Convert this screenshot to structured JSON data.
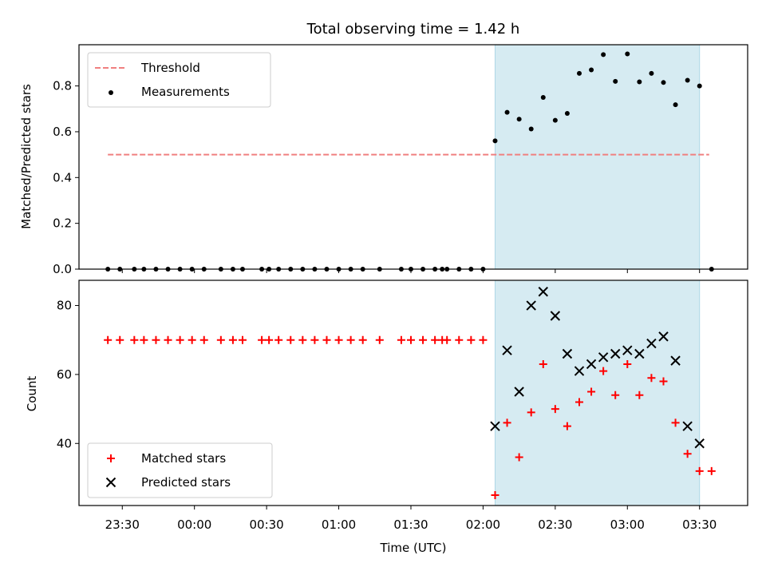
{
  "chart_data": [
    {
      "type": "scatter",
      "title": "Total observing time = 1.42 h",
      "ylabel": "Matched/Predicted stars",
      "ylim": [
        0,
        0.98
      ],
      "yticks": [
        0.0,
        0.2,
        0.4,
        0.6,
        0.8
      ],
      "ytick_labels": [
        "0.0",
        "0.2",
        "0.4",
        "0.6",
        "0.8"
      ],
      "xlim": [
        "23:12",
        "03:50"
      ],
      "highlight_span": [
        "02:05",
        "03:30"
      ],
      "highlight_color": "#add8e6",
      "legend_position": "upper left",
      "threshold": {
        "name": "Threshold",
        "value": 0.5,
        "x_range": [
          "23:24",
          "03:34"
        ],
        "color": "#f08080",
        "style": "dashed"
      },
      "series": [
        {
          "name": "Measurements",
          "marker": "dot",
          "color": "#000000",
          "points": [
            [
              "23:24",
              0
            ],
            [
              "23:29",
              0
            ],
            [
              "23:35",
              0
            ],
            [
              "23:39",
              0
            ],
            [
              "23:44",
              0
            ],
            [
              "23:49",
              0
            ],
            [
              "23:54",
              0
            ],
            [
              "23:59",
              0
            ],
            [
              "00:04",
              0
            ],
            [
              "00:11",
              0
            ],
            [
              "00:16",
              0
            ],
            [
              "00:20",
              0
            ],
            [
              "00:28",
              0
            ],
            [
              "00:31",
              0
            ],
            [
              "00:35",
              0
            ],
            [
              "00:40",
              0
            ],
            [
              "00:45",
              0
            ],
            [
              "00:50",
              0
            ],
            [
              "00:55",
              0
            ],
            [
              "01:00",
              0
            ],
            [
              "01:05",
              0
            ],
            [
              "01:10",
              0
            ],
            [
              "01:17",
              0
            ],
            [
              "01:26",
              0
            ],
            [
              "01:30",
              0
            ],
            [
              "01:35",
              0
            ],
            [
              "01:40",
              0
            ],
            [
              "01:43",
              0
            ],
            [
              "01:45",
              0
            ],
            [
              "01:50",
              0
            ],
            [
              "01:55",
              0
            ],
            [
              "02:00",
              0
            ],
            [
              "02:05",
              0.56
            ],
            [
              "02:10",
              0.685
            ],
            [
              "02:15",
              0.655
            ],
            [
              "02:20",
              0.612
            ],
            [
              "02:25",
              0.75
            ],
            [
              "02:30",
              0.65
            ],
            [
              "02:35",
              0.68
            ],
            [
              "02:40",
              0.855
            ],
            [
              "02:45",
              0.87
            ],
            [
              "02:50",
              0.937
            ],
            [
              "02:55",
              0.82
            ],
            [
              "03:00",
              0.94
            ],
            [
              "03:05",
              0.818
            ],
            [
              "03:10",
              0.855
            ],
            [
              "03:15",
              0.815
            ],
            [
              "03:20",
              0.718
            ],
            [
              "03:25",
              0.825
            ],
            [
              "03:30",
              0.8
            ],
            [
              "03:35",
              0
            ]
          ]
        }
      ]
    },
    {
      "type": "scatter",
      "xlabel": "Time (UTC)",
      "ylabel": "Count",
      "ylim": [
        22,
        87.3
      ],
      "yticks": [
        40,
        60,
        80
      ],
      "ytick_labels": [
        "40",
        "60",
        "80"
      ],
      "xlim": [
        "23:12",
        "03:50"
      ],
      "xticks": [
        "23:30",
        "00:00",
        "00:30",
        "01:00",
        "01:30",
        "02:00",
        "02:30",
        "03:00",
        "03:30"
      ],
      "xtick_labels": [
        "23:30",
        "00:00",
        "00:30",
        "01:00",
        "01:30",
        "02:00",
        "02:30",
        "03:00",
        "03:30"
      ],
      "highlight_span": [
        "02:05",
        "03:30"
      ],
      "highlight_color": "#add8e6",
      "legend_position": "lower left",
      "series": [
        {
          "name": "Matched stars",
          "marker": "plus",
          "color": "#ff0000",
          "points": [
            [
              "23:24",
              70
            ],
            [
              "23:29",
              70
            ],
            [
              "23:35",
              70
            ],
            [
              "23:39",
              70
            ],
            [
              "23:44",
              70
            ],
            [
              "23:49",
              70
            ],
            [
              "23:54",
              70
            ],
            [
              "23:59",
              70
            ],
            [
              "00:04",
              70
            ],
            [
              "00:11",
              70
            ],
            [
              "00:16",
              70
            ],
            [
              "00:20",
              70
            ],
            [
              "00:28",
              70
            ],
            [
              "00:31",
              70
            ],
            [
              "00:35",
              70
            ],
            [
              "00:40",
              70
            ],
            [
              "00:45",
              70
            ],
            [
              "00:50",
              70
            ],
            [
              "00:55",
              70
            ],
            [
              "01:00",
              70
            ],
            [
              "01:05",
              70
            ],
            [
              "01:10",
              70
            ],
            [
              "01:17",
              70
            ],
            [
              "01:26",
              70
            ],
            [
              "01:30",
              70
            ],
            [
              "01:35",
              70
            ],
            [
              "01:40",
              70
            ],
            [
              "01:43",
              70
            ],
            [
              "01:45",
              70
            ],
            [
              "01:50",
              70
            ],
            [
              "01:55",
              70
            ],
            [
              "02:00",
              70
            ],
            [
              "02:05",
              25
            ],
            [
              "02:10",
              46
            ],
            [
              "02:15",
              36
            ],
            [
              "02:20",
              49
            ],
            [
              "02:25",
              63
            ],
            [
              "02:30",
              50
            ],
            [
              "02:35",
              45
            ],
            [
              "02:40",
              52
            ],
            [
              "02:45",
              55
            ],
            [
              "02:50",
              61
            ],
            [
              "02:55",
              54
            ],
            [
              "03:00",
              63
            ],
            [
              "03:05",
              54
            ],
            [
              "03:10",
              59
            ],
            [
              "03:15",
              58
            ],
            [
              "03:20",
              46
            ],
            [
              "03:25",
              37
            ],
            [
              "03:30",
              32
            ],
            [
              "03:35",
              32
            ]
          ]
        },
        {
          "name": "Predicted stars",
          "marker": "x",
          "color": "#000000",
          "points": [
            [
              "02:05",
              45
            ],
            [
              "02:10",
              67
            ],
            [
              "02:15",
              55
            ],
            [
              "02:20",
              80
            ],
            [
              "02:25",
              84
            ],
            [
              "02:30",
              77
            ],
            [
              "02:35",
              66
            ],
            [
              "02:40",
              61
            ],
            [
              "02:45",
              63
            ],
            [
              "02:50",
              65
            ],
            [
              "02:55",
              66
            ],
            [
              "03:00",
              67
            ],
            [
              "03:05",
              66
            ],
            [
              "03:10",
              69
            ],
            [
              "03:15",
              71
            ],
            [
              "03:20",
              64
            ],
            [
              "03:25",
              45
            ],
            [
              "03:30",
              40
            ]
          ]
        }
      ]
    }
  ]
}
